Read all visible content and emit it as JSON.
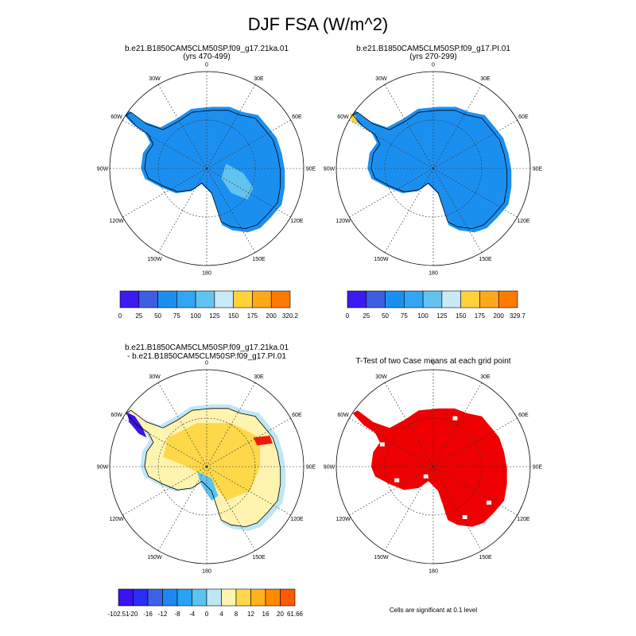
{
  "main_title": "DJF FSA (W/m^2)",
  "lon_labels": [
    "0",
    "30E",
    "60E",
    "90E",
    "120E",
    "150E",
    "180",
    "150W",
    "120W",
    "90W",
    "60W",
    "30W"
  ],
  "footnote": "Cells are significant at 0.1 level",
  "colors": {
    "coast": "#000000",
    "grid": "#333333",
    "cmap_abs": [
      "#3c1bf2",
      "#3d5ee0",
      "#1b8ff0",
      "#31a6f2",
      "#62c3ee",
      "#c8e9f7",
      "#ffd23c",
      "#ffa81a",
      "#ff7a00",
      "#ff1d00",
      "#d42b2b"
    ],
    "cmap_diff": [
      "#3a12f0",
      "#2d2cf2",
      "#3a63e6",
      "#1f87f0",
      "#27a3f2",
      "#5cc2ef",
      "#bfe6f5",
      "#fff3b0",
      "#ffd84a",
      "#ffb21c",
      "#ff8a00",
      "#ff5a00",
      "#ee1a0a",
      "#d02e2e"
    ],
    "sig": "#ee0000"
  },
  "chart_data": [
    {
      "type": "heatmap",
      "title": "b.e21.B1850CAM5CLM50SP.f09_g17.21ka.01",
      "subtitle": "(yrs 470-499)",
      "colorbar_labels": [
        "0",
        "25",
        "50",
        "75",
        "100",
        "125",
        "150",
        "175",
        "200",
        "320.2"
      ],
      "dominant_value_range": [
        50,
        75
      ],
      "max_value": 320.2
    },
    {
      "type": "heatmap",
      "title": "b.e21.B1850CAM5CLM50SP.f09_g17.PI.01",
      "subtitle": "(yrs 270-299)",
      "colorbar_labels": [
        "0",
        "25",
        "50",
        "75",
        "100",
        "125",
        "150",
        "175",
        "200",
        "329.7"
      ],
      "dominant_value_range": [
        50,
        75
      ],
      "max_value": 329.7
    },
    {
      "type": "heatmap",
      "title": "b.e21.B1850CAM5CLM50SP.f09_g17.21ka.01",
      "subtitle": "- b.e21.B1850CAM5CLM50SP.f09_g17.PI.01",
      "colorbar_labels": [
        "-102.51",
        "-20",
        "-16",
        "-12",
        "-8",
        "-4",
        "0",
        "4",
        "8",
        "12",
        "16",
        "20",
        "61.66"
      ],
      "dominant_value_range": [
        0,
        8
      ],
      "min_value": -102.51,
      "max_value": 61.66
    },
    {
      "type": "heatmap",
      "title": "T-Test of two Case means at each grid point",
      "significance_level": 0.1
    }
  ]
}
